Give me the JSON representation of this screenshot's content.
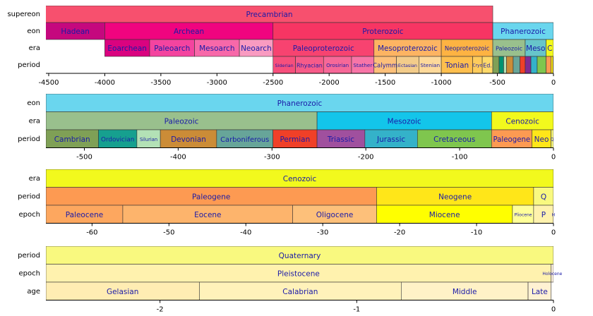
{
  "chart_data": [
    {
      "type": "timeline",
      "xlim": [
        -4525,
        0
      ],
      "xticks": [
        -4500,
        -4000,
        -3500,
        -3000,
        -2500,
        -2000,
        -1500,
        -1000,
        -500,
        0
      ],
      "rows": [
        {
          "name": "supereon",
          "intervals": [
            {
              "label": "Precambrian",
              "start": -4567,
              "end": -541,
              "color": "#f7506e"
            }
          ]
        },
        {
          "name": "eon",
          "intervals": [
            {
              "label": "Hadean",
              "start": -4567,
              "end": -4000,
              "color": "#c5087e"
            },
            {
              "label": "Archean",
              "start": -4000,
              "end": -2500,
              "color": "#f0047f"
            },
            {
              "label": "Proterozoic",
              "start": -2500,
              "end": -541,
              "color": "#f73563"
            },
            {
              "label": "Phanerozoic",
              "start": -541,
              "end": 0,
              "color": "#6ad6ee"
            }
          ]
        },
        {
          "name": "era",
          "intervals": [
            {
              "label": "Eoarchean",
              "start": -4000,
              "end": -3600,
              "color": "#da037f"
            },
            {
              "label": "Paleoarch",
              "start": -3600,
              "end": -3200,
              "color": "#f4449f"
            },
            {
              "label": "Mesoarch",
              "start": -3200,
              "end": -2800,
              "color": "#f768a9"
            },
            {
              "label": "Neoarch",
              "start": -2800,
              "end": -2500,
              "color": "#f99bc1"
            },
            {
              "label": "Paleoproterozoic",
              "start": -2500,
              "end": -1600,
              "color": "#f74370"
            },
            {
              "label": "Mesoproterozoic",
              "start": -1600,
              "end": -1000,
              "color": "#fdb462"
            },
            {
              "label": "Neoproterozoic",
              "start": -1000,
              "end": -541,
              "color": "#feb342"
            },
            {
              "label": "Paleozoic",
              "start": -541,
              "end": -252,
              "color": "#99c08d"
            },
            {
              "label": "Meso",
              "start": -252,
              "end": -66,
              "color": "#67c5ca"
            },
            {
              "label": "C",
              "start": -66,
              "end": 0,
              "color": "#f2f91d"
            }
          ]
        },
        {
          "name": "period",
          "intervals": [
            {
              "label": "Siderian",
              "start": -2500,
              "end": -2300,
              "color": "#f74f7c"
            },
            {
              "label": "Rhyacian",
              "start": -2300,
              "end": -2050,
              "color": "#f75b89"
            },
            {
              "label": "Orosirian",
              "start": -2050,
              "end": -1800,
              "color": "#f76898"
            },
            {
              "label": "Stather",
              "start": -1800,
              "end": -1600,
              "color": "#f875a7"
            },
            {
              "label": "Calymm",
              "start": -1600,
              "end": -1400,
              "color": "#fdc07a"
            },
            {
              "label": "Ectasian",
              "start": -1400,
              "end": -1200,
              "color": "#f3cc8a"
            },
            {
              "label": "Stenian",
              "start": -1200,
              "end": -1000,
              "color": "#fed99a"
            },
            {
              "label": "Tonian",
              "start": -1000,
              "end": -720,
              "color": "#febf4e"
            },
            {
              "label": "Cryo",
              "start": -720,
              "end": -635,
              "color": "#fecc5c"
            },
            {
              "label": "Ed.",
              "start": -635,
              "end": -541,
              "color": "#fed96a"
            },
            {
              "label": null,
              "start": -541,
              "end": -485,
              "color": "#7fa056"
            },
            {
              "label": null,
              "start": -485,
              "end": -444,
              "color": "#009270"
            },
            {
              "label": null,
              "start": -444,
              "end": -419,
              "color": "#b3e1b6"
            },
            {
              "label": null,
              "start": -419,
              "end": -359,
              "color": "#cb8c37"
            },
            {
              "label": null,
              "start": -359,
              "end": -299,
              "color": "#67a599"
            },
            {
              "label": null,
              "start": -299,
              "end": -252,
              "color": "#f04028"
            },
            {
              "label": null,
              "start": -252,
              "end": -201,
              "color": "#812b92"
            },
            {
              "label": null,
              "start": -201,
              "end": -145,
              "color": "#34b2c9"
            },
            {
              "label": null,
              "start": -145,
              "end": -66,
              "color": "#7fc64e"
            },
            {
              "label": null,
              "start": -66,
              "end": -23,
              "color": "#fd9a52"
            },
            {
              "label": null,
              "start": -23,
              "end": -2.58,
              "color": "#ffe619"
            },
            {
              "label": null,
              "start": -2.58,
              "end": 0,
              "color": "#f9f97f"
            }
          ]
        }
      ]
    },
    {
      "type": "timeline",
      "xlim": [
        -541,
        0
      ],
      "xticks": [
        -500,
        -400,
        -300,
        -200,
        -100,
        0
      ],
      "rows": [
        {
          "name": "eon",
          "intervals": [
            {
              "label": "Phanerozoic",
              "start": -541,
              "end": 0,
              "color": "#6ad6ee"
            }
          ]
        },
        {
          "name": "era",
          "intervals": [
            {
              "label": "Paleozoic",
              "start": -541,
              "end": -252,
              "color": "#99c08d"
            },
            {
              "label": "Mesozoic",
              "start": -252,
              "end": -66,
              "color": "#13c5ea"
            },
            {
              "label": "Cenozoic",
              "start": -66,
              "end": 0,
              "color": "#f2f91d"
            }
          ]
        },
        {
          "name": "period",
          "intervals": [
            {
              "label": "Cambrian",
              "start": -541,
              "end": -485,
              "color": "#7fa056"
            },
            {
              "label": "Ordovician",
              "start": -485,
              "end": -444,
              "color": "#16a08f"
            },
            {
              "label": "Silurian",
              "start": -444,
              "end": -419,
              "color": "#b3e1b6"
            },
            {
              "label": "Devonian",
              "start": -419,
              "end": -359,
              "color": "#cb8c37"
            },
            {
              "label": "Carboniferous",
              "start": -359,
              "end": -299,
              "color": "#67a599"
            },
            {
              "label": "Permian",
              "start": -299,
              "end": -252,
              "color": "#f04028"
            },
            {
              "label": "Triassic",
              "start": -252,
              "end": -201,
              "color": "#a0509e"
            },
            {
              "label": "Jurassic",
              "start": -201,
              "end": -145,
              "color": "#34b2c9"
            },
            {
              "label": "Cretaceous",
              "start": -145,
              "end": -66,
              "color": "#7fc64e"
            },
            {
              "label": "Paleogene",
              "start": -66,
              "end": -23,
              "color": "#fd9a52"
            },
            {
              "label": "Neo",
              "start": -23,
              "end": -2.58,
              "color": "#ffe619"
            },
            {
              "label": "Q",
              "start": -2.58,
              "end": 0,
              "color": "#f9f97f"
            }
          ]
        }
      ]
    },
    {
      "type": "timeline",
      "xlim": [
        -66,
        0
      ],
      "xticks": [
        -60,
        -50,
        -40,
        -30,
        -20,
        -10,
        0
      ],
      "rows": [
        {
          "name": "era",
          "intervals": [
            {
              "label": "Cenozoic",
              "start": -66,
              "end": 0,
              "color": "#f2f91d"
            }
          ]
        },
        {
          "name": "period",
          "intervals": [
            {
              "label": "Paleogene",
              "start": -66,
              "end": -23,
              "color": "#fd9a52"
            },
            {
              "label": "Neogene",
              "start": -23,
              "end": -2.58,
              "color": "#ffe619"
            },
            {
              "label": "Q",
              "start": -2.58,
              "end": 0,
              "color": "#f9f97f"
            }
          ]
        },
        {
          "name": "epoch",
          "intervals": [
            {
              "label": "Paleocene",
              "start": -66,
              "end": -56,
              "color": "#fda75f"
            },
            {
              "label": "Eocene",
              "start": -56,
              "end": -33.9,
              "color": "#fdb46c"
            },
            {
              "label": "Oligocene",
              "start": -33.9,
              "end": -23,
              "color": "#fdc07a"
            },
            {
              "label": "Miocene",
              "start": -23,
              "end": -5.333,
              "color": "#ffff00"
            },
            {
              "label": "Pliocene",
              "start": -5.333,
              "end": -2.58,
              "color": "#ffff99"
            },
            {
              "label": "P",
              "start": -2.58,
              "end": -0.0117,
              "color": "#fff2ae"
            },
            {
              "label": "H",
              "start": -0.0117,
              "end": 0,
              "color": "#fef2e0"
            }
          ]
        }
      ]
    },
    {
      "type": "timeline",
      "xlim": [
        -2.58,
        0
      ],
      "xticks": [
        -2,
        -1,
        0
      ],
      "rows": [
        {
          "name": "period",
          "intervals": [
            {
              "label": "Quaternary",
              "start": -2.58,
              "end": 0,
              "color": "#f9f97f"
            }
          ]
        },
        {
          "name": "epoch",
          "intervals": [
            {
              "label": "Pleistocene",
              "start": -2.58,
              "end": -0.0117,
              "color": "#fff2ae"
            },
            {
              "label": "Holocene",
              "start": -0.0117,
              "end": 0,
              "color": "#fef2e0"
            }
          ]
        },
        {
          "name": "age",
          "intervals": [
            {
              "label": "Gelasian",
              "start": -2.58,
              "end": -1.8,
              "color": "#ffedb3"
            },
            {
              "label": "Calabrian",
              "start": -1.8,
              "end": -0.774,
              "color": "#fff2ba"
            },
            {
              "label": "Middle",
              "start": -0.774,
              "end": -0.129,
              "color": "#fff2c7"
            },
            {
              "label": "Late",
              "start": -0.129,
              "end": -0.0117,
              "color": "#fff2d3"
            }
          ]
        }
      ]
    }
  ]
}
